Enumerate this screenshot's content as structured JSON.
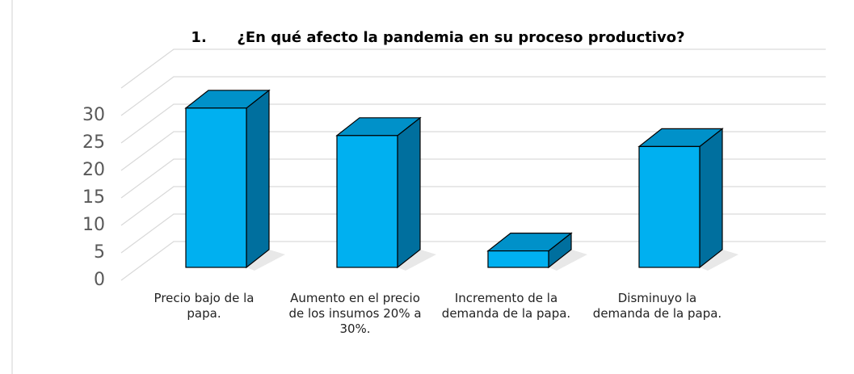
{
  "chart_data": {
    "type": "bar3d",
    "title": "1.      ¿En qué afecto la pandemia en su proceso productivo?",
    "categories": [
      "Precio bajo de la papa.",
      "Aumento en el precio de los insumos 20%  a 30%.",
      "Incremento de la demanda de la papa.",
      "Disminuyo la demanda de la papa."
    ],
    "values": [
      29,
      24,
      3,
      22
    ],
    "color": "#00b0f0",
    "side_color": "#006f9e",
    "top_color": "#0091c9",
    "ylim": [
      0,
      35
    ],
    "yticks": [
      0,
      5,
      10,
      15,
      20,
      25,
      30
    ],
    "grid": true
  }
}
